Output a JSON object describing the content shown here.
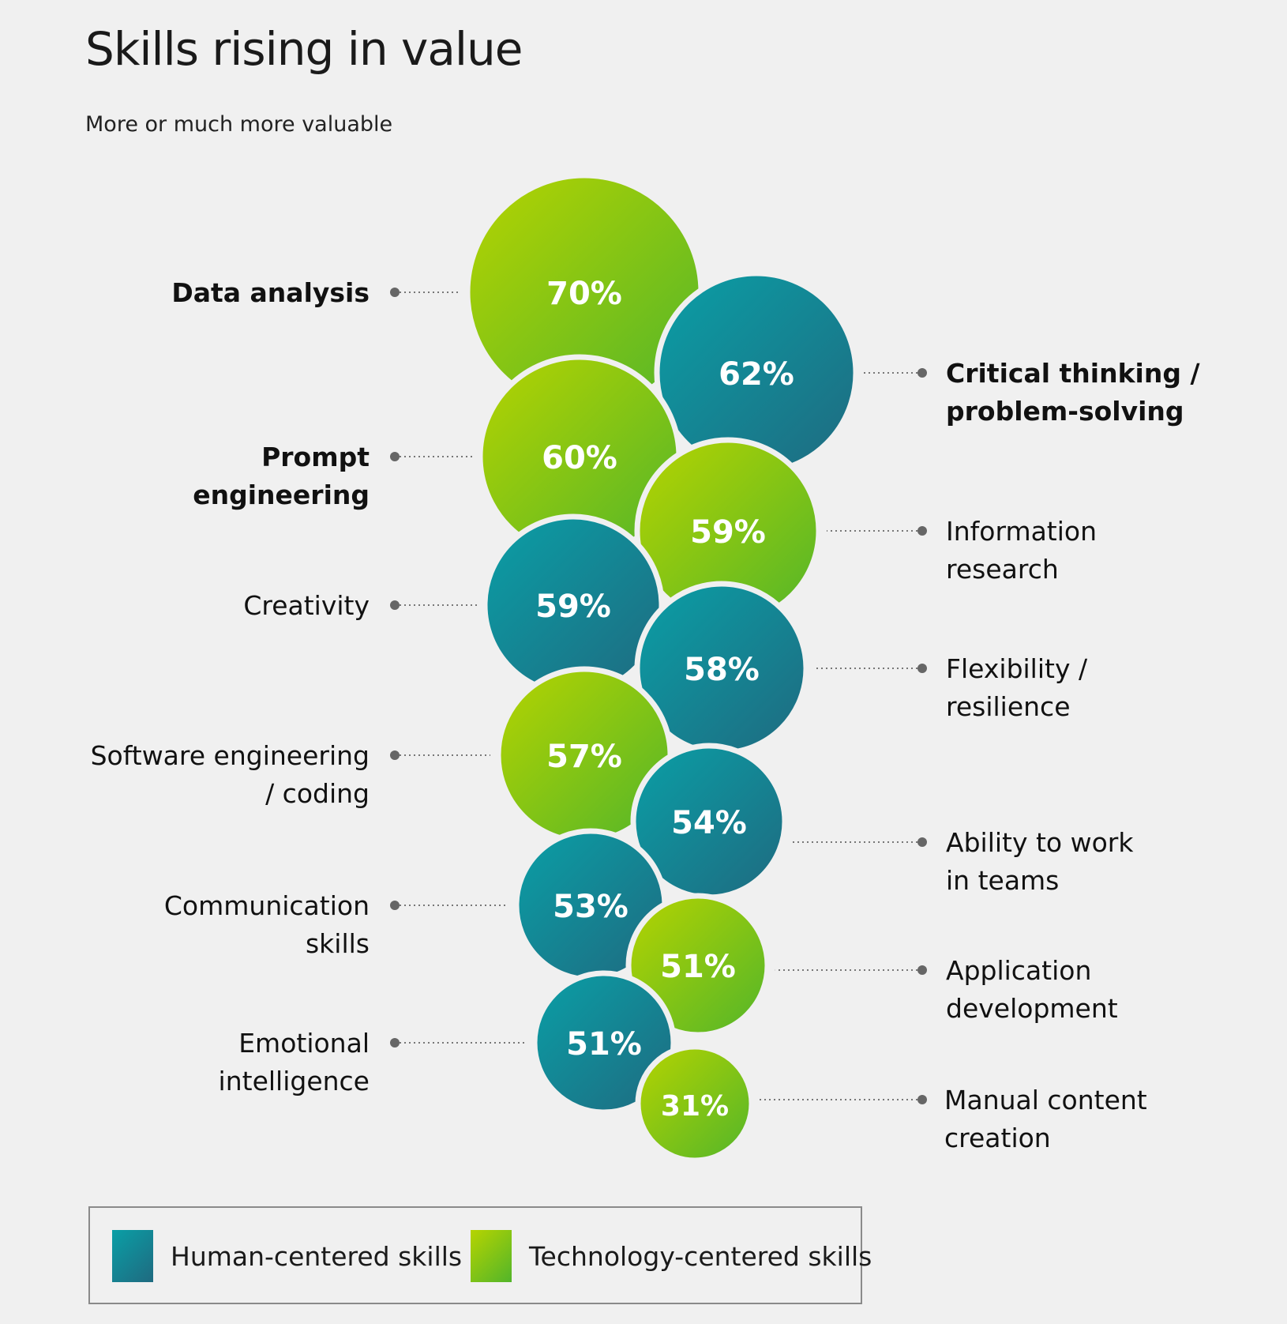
{
  "chart_data": {
    "type": "bubble",
    "title": "Skills rising in value",
    "subtitle": "More or much more valuable",
    "unit": "%",
    "points": [
      {
        "label": "Data analysis",
        "value": 70,
        "category": "tech",
        "side": "left",
        "bold": true
      },
      {
        "label": "Critical thinking / problem-solving",
        "value": 62,
        "category": "human",
        "side": "right",
        "bold": true
      },
      {
        "label": "Prompt engineering",
        "value": 60,
        "category": "tech",
        "side": "left",
        "bold": true
      },
      {
        "label": "Information research",
        "value": 59,
        "category": "tech",
        "side": "right",
        "bold": false
      },
      {
        "label": "Creativity",
        "value": 59,
        "category": "human",
        "side": "left",
        "bold": false
      },
      {
        "label": "Flexibility / resilience",
        "value": 58,
        "category": "human",
        "side": "right",
        "bold": false
      },
      {
        "label": "Software engineering / coding",
        "value": 57,
        "category": "tech",
        "side": "left",
        "bold": false
      },
      {
        "label": "Ability to work in teams",
        "value": 54,
        "category": "human",
        "side": "right",
        "bold": false
      },
      {
        "label": "Communication skills",
        "value": 53,
        "category": "human",
        "side": "left",
        "bold": false
      },
      {
        "label": "Application development",
        "value": 51,
        "category": "tech",
        "side": "right",
        "bold": false
      },
      {
        "label": "Emotional intelligence",
        "value": 51,
        "category": "human",
        "side": "left",
        "bold": false
      },
      {
        "label": "Manual content creation",
        "value": 31,
        "category": "tech",
        "side": "right",
        "bold": false
      }
    ],
    "legend": [
      {
        "key": "human",
        "label": "Human-centered skills"
      },
      {
        "key": "tech",
        "label": "Technology-centered skills"
      }
    ],
    "legend_position": "bottom-left"
  },
  "colors": {
    "human_start": "#0a9fa6",
    "human_end": "#1f6a80",
    "tech_start": "#b6d400",
    "tech_end": "#52b52a",
    "background": "#f0f0f0",
    "leader": "#777777"
  }
}
